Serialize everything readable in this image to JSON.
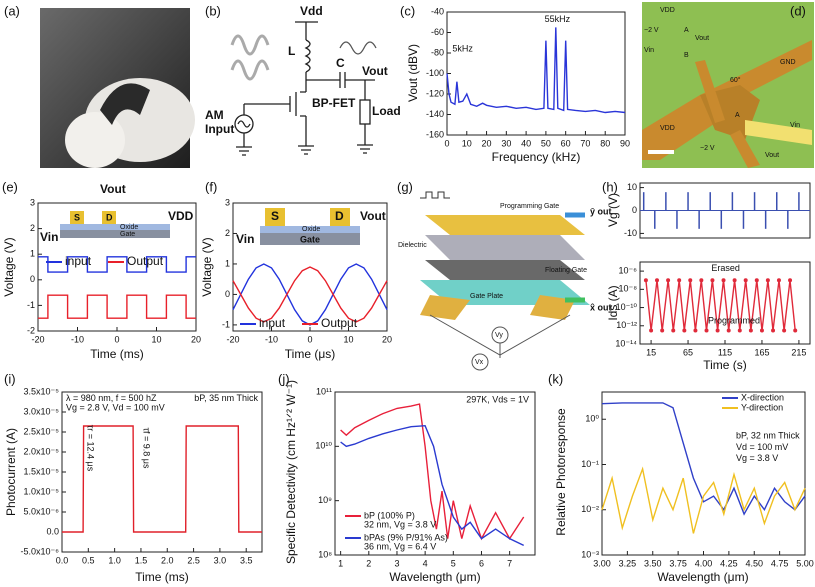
{
  "diagrams": {
    "a": {
      "label": "(a)"
    },
    "b": {
      "label": "(b)",
      "vdd": "Vdd",
      "l": "L",
      "c": "C",
      "vout": "Vout",
      "fet": "BP-FET",
      "am": "AM",
      "input": "Input",
      "load": "Load"
    },
    "d": {
      "label": "(d)",
      "vdd_top": "VDD",
      "m2v": "−2 V",
      "vout": "Vout",
      "vin": "Vin",
      "a": "A",
      "b": "B",
      "gnd": "GND",
      "angle": "60°",
      "vdd": "VDD",
      "a2": "A",
      "vout2": "Vout",
      "m2v2": "−2 V",
      "vin2": "Vin"
    },
    "g": {
      "label": "(g)",
      "prog": "Programming Gate",
      "diel": "Dielectric",
      "float": "Floating Gate",
      "plate": "Gate Plate",
      "yout": "ŷ out",
      "xout": "x̂ out",
      "vy": "Vy",
      "vx": "Vx"
    }
  },
  "chart_data": [
    {
      "type": "line",
      "panel_label": "(c)",
      "xlabel": "Frequency (kHz)",
      "ylabel": "Vout (dBV)",
      "x": [
        0,
        1,
        2,
        4,
        5,
        6,
        8,
        10,
        12,
        15,
        18,
        20,
        25,
        30,
        35,
        40,
        45,
        49,
        50,
        51,
        54,
        55,
        56,
        59,
        60,
        61,
        65,
        70,
        75,
        80,
        85,
        90
      ],
      "series": [
        {
          "color": "#2a35d8",
          "values": [
            -100,
            -120,
            -128,
            -130,
            -108,
            -128,
            -127,
            -120,
            -130,
            -132,
            -129,
            -131,
            -133,
            -132,
            -134,
            -133,
            -135,
            -134,
            -68,
            -134,
            -135,
            -55,
            -134,
            -136,
            -68,
            -135,
            -136,
            -137,
            -136,
            -138,
            -137,
            -138
          ]
        }
      ],
      "xlim": [
        0,
        90
      ],
      "ylim": [
        -160,
        -40
      ],
      "xticks": [
        0,
        10,
        20,
        30,
        40,
        50,
        60,
        70,
        80,
        90
      ],
      "yticks": [
        -160,
        -140,
        -120,
        -100,
        -80,
        -60,
        -40
      ],
      "annotations": [
        "5kHz",
        "55kHz"
      ]
    },
    {
      "type": "line",
      "panel_label": "(e)",
      "xlabel": "Time (ms)",
      "ylabel": "Voltage (V)",
      "x": [
        -20,
        -17.5,
        -17.5,
        -12.5,
        -12.5,
        -7.5,
        -7.5,
        -2.5,
        -2.5,
        2.5,
        2.5,
        7.5,
        7.5,
        12.5,
        12.5,
        17.5,
        17.5,
        20
      ],
      "series": [
        {
          "name": "input",
          "color": "#2233dd",
          "values": [
            0.9,
            0.9,
            0.3,
            0.3,
            0.9,
            0.9,
            0.3,
            0.3,
            0.9,
            0.9,
            0.3,
            0.3,
            0.9,
            0.9,
            0.3,
            0.3,
            0.9,
            0.9
          ]
        },
        {
          "name": "Output",
          "color": "#e8202a",
          "values": [
            -1.5,
            -1.5,
            -0.6,
            -0.6,
            -1.5,
            -1.5,
            -0.6,
            -0.6,
            -1.5,
            -1.5,
            -0.6,
            -0.6,
            -1.5,
            -1.5,
            -0.6,
            -0.6,
            -1.5,
            -1.5
          ]
        }
      ],
      "xlim": [
        -20,
        20
      ],
      "ylim": [
        -2,
        3
      ],
      "xticks": [
        -20,
        -10,
        0,
        10,
        20
      ],
      "yticks": [
        -2,
        -1,
        0,
        1,
        2,
        3
      ],
      "legend": "center",
      "inset": [
        "Vout",
        "S",
        "D",
        "VDD",
        "Vin",
        "Oxide",
        "Gate"
      ]
    },
    {
      "type": "line",
      "panel_label": "(f)",
      "xlabel": "Time (μs)",
      "ylabel": "Voltage (V)",
      "x": [
        -20,
        -18,
        -16,
        -14,
        -12,
        -10,
        -8,
        -6,
        -4,
        -2,
        0,
        2,
        4,
        6,
        8,
        10,
        12,
        14,
        16,
        18,
        20
      ],
      "series": [
        {
          "name": "input",
          "color": "#2233dd",
          "values": [
            -0.5,
            0,
            0.5,
            0.87,
            1,
            0.87,
            0.5,
            0,
            -0.5,
            -0.87,
            -1,
            -0.87,
            -0.5,
            0,
            0.5,
            0.87,
            1,
            0.87,
            0.5,
            0,
            -0.5
          ]
        },
        {
          "name": "Output",
          "color": "#e8202a",
          "values": [
            0.45,
            0,
            -0.45,
            -0.78,
            -0.9,
            -0.78,
            -0.45,
            0,
            0.45,
            0.78,
            0.9,
            0.78,
            0.45,
            0,
            -0.45,
            -0.78,
            -0.9,
            -0.78,
            -0.45,
            0,
            0.45
          ]
        }
      ],
      "xlim": [
        -20,
        20
      ],
      "ylim": [
        -1.2,
        3
      ],
      "xticks": [
        -20,
        -10,
        0,
        10,
        20
      ],
      "yticks": [
        -1,
        0,
        1,
        2,
        3
      ],
      "legend": "lower center",
      "inset": [
        "S",
        "D",
        "Vout",
        "Vin",
        "Oxide",
        "Gate"
      ]
    },
    {
      "type": "stem",
      "panel_label": "(h)",
      "ylabel": "Vg (V)",
      "x": [
        5,
        20,
        35,
        50,
        65,
        80,
        95,
        110,
        125,
        140,
        155,
        170,
        185,
        200,
        215
      ],
      "series": [
        {
          "color": "#3a4fb0",
          "values": [
            8,
            -8,
            8,
            -8,
            8,
            -8,
            8,
            -8,
            8,
            -8,
            8,
            -8,
            8,
            -8,
            8
          ]
        }
      ],
      "xlim": [
        0,
        230
      ],
      "ylim": [
        -12,
        12
      ],
      "yticks": [
        -10,
        0,
        10
      ]
    },
    {
      "type": "line",
      "marker": true,
      "ylabel": "Ids (A)",
      "xlabel": "Time (s)",
      "ylog": true,
      "x": [
        8,
        15,
        23,
        30,
        38,
        45,
        53,
        60,
        68,
        75,
        83,
        90,
        98,
        105,
        113,
        120,
        128,
        135,
        143,
        150,
        158,
        165,
        173,
        180,
        188,
        195,
        203,
        210
      ],
      "series": [
        {
          "color": "#e02a3a",
          "values": [
            1e-07,
            3e-13,
            1e-07,
            3e-13,
            1e-07,
            3e-13,
            1e-07,
            3e-13,
            1e-07,
            3e-13,
            1e-07,
            3e-13,
            1e-07,
            3e-13,
            1e-07,
            3e-13,
            1e-07,
            3e-13,
            1e-07,
            3e-13,
            1e-07,
            3e-13,
            1e-07,
            3e-13,
            1e-07,
            3e-13,
            1e-07,
            3e-13
          ]
        }
      ],
      "xlim": [
        0,
        230
      ],
      "ylim": [
        1e-14,
        1e-05
      ],
      "xticks": [
        15,
        65,
        115,
        165,
        215
      ],
      "yticks": [
        {
          "value": 1e-14,
          "label": "10⁻¹⁴"
        },
        {
          "value": 1e-12,
          "label": "10⁻¹²"
        },
        {
          "value": 1e-10,
          "label": "10⁻¹⁰"
        },
        {
          "value": 1e-08,
          "label": "10⁻⁸"
        },
        {
          "value": 1e-06,
          "label": "10⁻⁶"
        }
      ],
      "annotations": [
        "Erased",
        "Programmed"
      ]
    },
    {
      "type": "line",
      "panel_label": "(i)",
      "xlabel": "Time (ms)",
      "ylabel": "Photocurrent (A)",
      "x": [
        0,
        0.4,
        0.41,
        1.35,
        1.36,
        2.35,
        2.36,
        3.35,
        3.36,
        3.8
      ],
      "series": [
        {
          "color": "#e0202a",
          "values": [
            0,
            0,
            2.65e-05,
            2.65e-05,
            0,
            0,
            2.65e-05,
            2.65e-05,
            0,
            0
          ]
        }
      ],
      "xlim": [
        0,
        3.8
      ],
      "ylim": [
        -5e-06,
        3.5e-05
      ],
      "xticks": [
        {
          "value": 0,
          "label": "0.0"
        },
        0.5,
        {
          "value": 1,
          "label": "1.0"
        },
        1.5,
        {
          "value": 2,
          "label": "2.0"
        },
        2.5,
        {
          "value": 3,
          "label": "3.0"
        },
        3.5
      ],
      "yticks": [
        {
          "value": -5e-06,
          "label": "-5.0x10⁻⁶"
        },
        {
          "value": 0,
          "label": "0.0"
        },
        {
          "value": 5e-06,
          "label": "5.0x10⁻⁶"
        },
        {
          "value": 1e-05,
          "label": "1.0x10⁻⁵"
        },
        {
          "value": 1.5e-05,
          "label": "1.5x10⁻⁵"
        },
        {
          "value": 2e-05,
          "label": "2.0x10⁻⁵"
        },
        {
          "value": 2.5e-05,
          "label": "2.5x10⁻⁵"
        },
        {
          "value": 3e-05,
          "label": "3.0x10⁻⁵"
        },
        {
          "value": 3.5e-05,
          "label": "3.5x10⁻⁵"
        }
      ],
      "annotations": [
        "λ = 980 nm, f = 500 hZ",
        "Vg = 2.8 V, Vd = 100 mV",
        "bP, 35 nm Thick",
        "τr = 12.4 μs",
        "τf = 9.8 μs"
      ]
    },
    {
      "type": "line",
      "panel_label": "(j)",
      "xlabel": "Wavelength (μm)",
      "ylabel": "Specific Detectivity (cm Hz¹ᐟ² W⁻¹)",
      "ylog": true,
      "series": [
        {
          "name": "bP (100% P)",
          "detail": "32 nm, Vg = 3.8 V",
          "color": "#e8203a",
          "x": [
            1,
            1.2,
            1.5,
            2,
            2.5,
            3,
            3.5,
            3.8,
            4.0,
            4.2,
            4.4,
            4.6,
            4.8,
            5,
            5.3,
            5.6,
            6,
            6.5,
            7,
            7.5
          ],
          "values": [
            20000000000.0,
            16000000000.0,
            22000000000.0,
            30000000000.0,
            40000000000.0,
            50000000000.0,
            55000000000.0,
            60000000000.0,
            10000000000.0,
            1000000000.0,
            300000000.0,
            1500000000.0,
            200000000.0,
            1000000000.0,
            200000000.0,
            800000000.0,
            200000000.0,
            600000000.0,
            200000000.0,
            500000000.0
          ]
        },
        {
          "name": "bPAs (9% P/91% As)",
          "detail": "36 nm, Vg = 6.4 V",
          "color": "#2a3ad0",
          "x": [
            1,
            1.2,
            1.5,
            2,
            2.5,
            3,
            3.5,
            4,
            4.3,
            4.6,
            5,
            5.3,
            5.6,
            6,
            6.5,
            7,
            7.5
          ],
          "values": [
            12000000000.0,
            10000000000.0,
            11000000000.0,
            14000000000.0,
            17000000000.0,
            20000000000.0,
            23000000000.0,
            24000000000.0,
            10000000000.0,
            2000000000.0,
            500000000.0,
            300000000.0,
            400000000.0,
            200000000.0,
            300000000.0,
            200000000.0,
            150000000.0
          ]
        }
      ],
      "xlim": [
        0.8,
        7.9
      ],
      "ylim": [
        100000000.0,
        100000000000.0
      ],
      "xticks": [
        1,
        2,
        3,
        4,
        5,
        6,
        7
      ],
      "yticks": [
        {
          "value": 100000000.0,
          "label": "10⁸"
        },
        {
          "value": 1000000000.0,
          "label": "10⁹"
        },
        {
          "value": 10000000000.0,
          "label": "10¹⁰"
        },
        {
          "value": 100000000000.0,
          "label": "10¹¹"
        }
      ],
      "legend": "lower left",
      "annotations": [
        "297K, Vds = 1V"
      ]
    },
    {
      "type": "line",
      "panel_label": "(k)",
      "xlabel": "Wavelength (μm)",
      "ylabel": "Relative Photoresponse",
      "ylog": true,
      "series": [
        {
          "name": "X-direction",
          "color": "#3040c8",
          "x": [
            3.0,
            3.2,
            3.4,
            3.6,
            3.7,
            3.8,
            3.9,
            4.0,
            4.1,
            4.2,
            4.3,
            4.4,
            4.5,
            4.6,
            4.7,
            4.8,
            4.9,
            5.0
          ],
          "values": [
            2.2,
            2.3,
            2.3,
            2.3,
            1.8,
            0.3,
            0.05,
            0.015,
            0.02,
            0.01,
            0.03,
            0.008,
            0.02,
            0.01,
            0.03,
            0.015,
            0.01,
            0.02
          ]
        },
        {
          "name": "Y-direction",
          "color": "#f0c020",
          "x": [
            3.0,
            3.1,
            3.2,
            3.3,
            3.4,
            3.5,
            3.6,
            3.7,
            3.8,
            3.9,
            4.0,
            4.1,
            4.2,
            4.3,
            4.4,
            4.5,
            4.6,
            4.7,
            4.8,
            4.9,
            5.0
          ],
          "values": [
            0.01,
            0.05,
            0.004,
            0.02,
            0.08,
            0.006,
            0.03,
            0.01,
            0.05,
            0.003,
            0.02,
            0.04,
            0.008,
            0.06,
            0.01,
            0.03,
            0.005,
            0.02,
            0.04,
            0.01,
            0.03
          ]
        }
      ],
      "xlim": [
        3,
        5
      ],
      "ylim": [
        0.001,
        4
      ],
      "xticks": [
        {
          "value": 3,
          "label": "3.00"
        },
        3.25,
        {
          "value": 3.5,
          "label": "3.50"
        },
        3.75,
        {
          "value": 4,
          "label": "4.00"
        },
        4.25,
        {
          "value": 4.5,
          "label": "4.50"
        },
        4.75,
        {
          "value": 5,
          "label": "5.00"
        }
      ],
      "yticks": [
        {
          "value": 0.001,
          "label": "10⁻³"
        },
        {
          "value": 0.01,
          "label": "10⁻²"
        },
        {
          "value": 0.1,
          "label": "10⁻¹"
        },
        {
          "value": 1,
          "label": "10⁰"
        }
      ],
      "legend": "upper right",
      "annotations": [
        "bP, 32 nm Thick",
        "Vd = 100 mV",
        "Vg = 3.8 V"
      ]
    }
  ]
}
